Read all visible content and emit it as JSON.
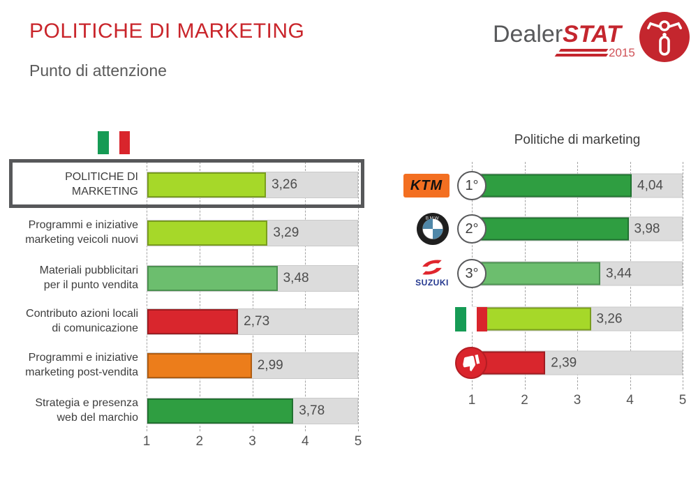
{
  "header": {
    "title": "POLITICHE DI MARKETING",
    "subtitle": "Punto di attenzione",
    "logo": {
      "name_gray": "Dealer",
      "name_red": "STAT",
      "year": "2015",
      "badge_icon": "motorcycle-icon"
    }
  },
  "colors": {
    "accent_red": "#C9252B",
    "logo_red": "#C4262E",
    "logo_gray": "#58595B",
    "track": "#DCDCDC",
    "gridline": "#A3A3A3",
    "flag_green": "#169B55",
    "flag_red": "#D9252C",
    "ktm_orange": "#F36F21",
    "suzuki_blue": "#24388F",
    "bmw_blue": "#4F87A8",
    "bars": {
      "lime": {
        "fill": "#A6D829",
        "border": "#7A9E1E"
      },
      "green_mid": {
        "fill": "#6CBE6E",
        "border": "#4B9150"
      },
      "green_dark": {
        "fill": "#2F9E41",
        "border": "#217231"
      },
      "red": {
        "fill": "#D9262D",
        "border": "#9F1C21"
      },
      "orange": {
        "fill": "#EC7D1B",
        "border": "#B05D12"
      }
    }
  },
  "chart_data": [
    {
      "type": "bar",
      "orientation": "horizontal",
      "legend_icon": "italy-flag",
      "x_range": [
        1,
        5
      ],
      "x_ticks": [
        "1",
        "2",
        "3",
        "4",
        "5"
      ],
      "grid": "dashed-vertical",
      "rows": [
        {
          "label": "POLITICHE DI MARKETING",
          "label_lines": [
            "POLITICHE DI",
            "MARKETING"
          ],
          "value": 3.26,
          "value_label": "3,26",
          "color": "lime",
          "highlighted": true
        },
        {
          "label": "Programmi e iniziative marketing veicoli nuovi",
          "label_lines": [
            "Programmi e iniziative",
            "marketing veicoli nuovi"
          ],
          "value": 3.29,
          "value_label": "3,29",
          "color": "lime",
          "highlighted": false
        },
        {
          "label": "Materiali pubblicitari per il punto vendita",
          "label_lines": [
            "Materiali pubblicitari",
            "per il punto vendita"
          ],
          "value": 3.48,
          "value_label": "3,48",
          "color": "green_mid",
          "highlighted": false
        },
        {
          "label": "Contributo azioni locali di comunicazione",
          "label_lines": [
            "Contributo azioni locali",
            "di comunicazione"
          ],
          "value": 2.73,
          "value_label": "2,73",
          "color": "red",
          "highlighted": false
        },
        {
          "label": "Programmi e iniziative marketing post-vendita",
          "label_lines": [
            "Programmi e iniziative",
            "marketing post-vendita"
          ],
          "value": 2.99,
          "value_label": "2,99",
          "color": "orange",
          "highlighted": false
        },
        {
          "label": "Strategia e presenza web del marchio",
          "label_lines": [
            "Strategia e presenza",
            "web del marchio"
          ],
          "value": 3.78,
          "value_label": "3,78",
          "color": "green_dark",
          "highlighted": false
        }
      ]
    },
    {
      "type": "bar",
      "orientation": "horizontal",
      "title": "Politiche di marketing",
      "x_range": [
        1,
        5
      ],
      "x_ticks": [
        "1",
        "2",
        "3",
        "4",
        "5"
      ],
      "grid": "dashed-vertical",
      "rows": [
        {
          "logo_text": "KTM",
          "icon": "ktm-logo",
          "rank": "1°",
          "value": 4.04,
          "value_label": "4,04",
          "color": "green_dark"
        },
        {
          "logo_text": "BMW",
          "icon": "bmw-logo",
          "rank": "2°",
          "value": 3.98,
          "value_label": "3,98",
          "color": "green_dark"
        },
        {
          "logo_text": "SUZUKI",
          "icon": "suzuki-logo",
          "rank": "3°",
          "value": 3.44,
          "value_label": "3,44",
          "color": "green_mid"
        },
        {
          "icon": "italy-flag",
          "value": 3.26,
          "value_label": "3,26",
          "color": "lime"
        },
        {
          "icon": "thumbs-down",
          "value": 2.39,
          "value_label": "2,39",
          "color": "red"
        }
      ]
    }
  ]
}
